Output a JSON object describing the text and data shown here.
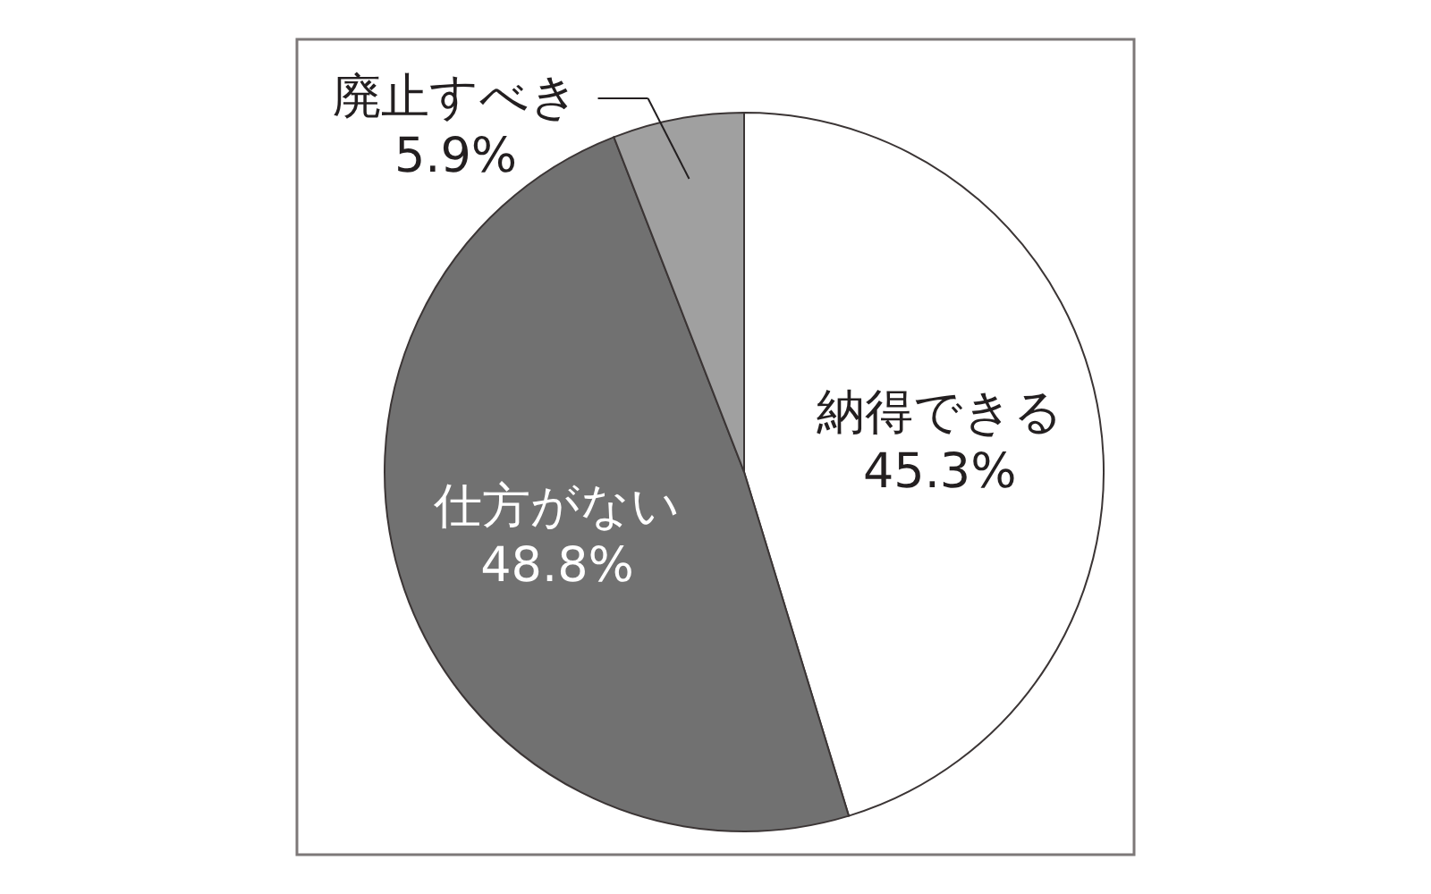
{
  "chart_data": {
    "type": "pie",
    "categories": [
      "納得できる",
      "仕方がない",
      "廃止すべき"
    ],
    "values": [
      45.3,
      48.8,
      5.9
    ],
    "colors": [
      "#ffffff",
      "#717171",
      "#a0a0a0"
    ],
    "value_labels": [
      "45.3%",
      "48.8%",
      "5.9%"
    ]
  }
}
